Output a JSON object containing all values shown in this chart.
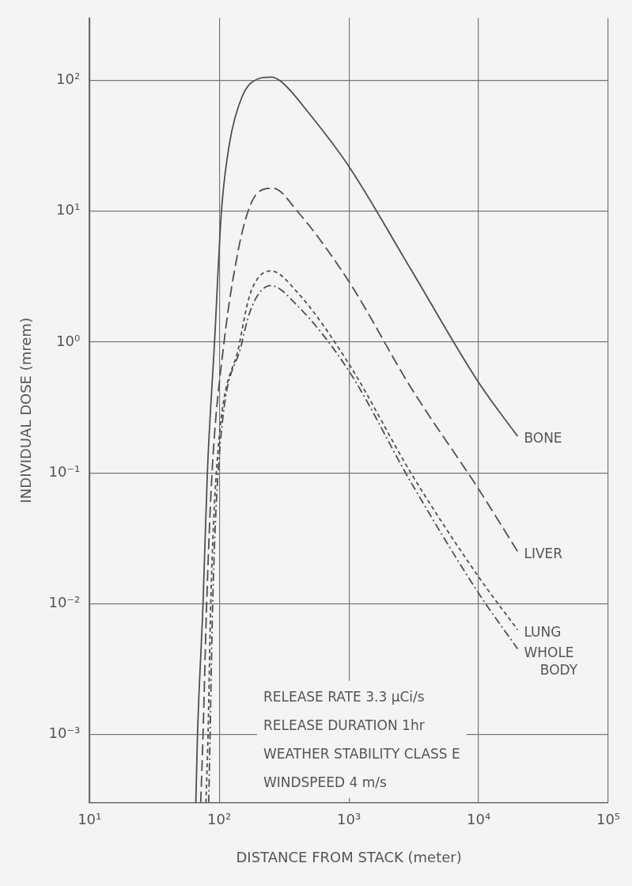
{
  "chart_data": {
    "type": "line",
    "xlabel": "DISTANCE FROM STACK (meter)",
    "ylabel": "INDIVIDUAL DOSE (mrem)",
    "log": "xy",
    "grid": true,
    "legend": false,
    "marker": "none",
    "xlim": [
      10,
      100000
    ],
    "ylim": [
      0.0003,
      300
    ],
    "xticks": [
      {
        "value": 10,
        "label": "10¹"
      },
      {
        "value": 100,
        "label": "10²"
      },
      {
        "value": 1000,
        "label": "10³"
      },
      {
        "value": 10000,
        "label": "10⁴"
      },
      {
        "value": 100000,
        "label": "10⁵"
      }
    ],
    "yticks": [
      {
        "value": 0.001,
        "label": "10⁻³"
      },
      {
        "value": 0.01,
        "label": "10⁻²"
      },
      {
        "value": 0.1,
        "label": "10⁻¹"
      },
      {
        "value": 1,
        "label": "10⁰"
      },
      {
        "value": 10,
        "label": "10¹"
      },
      {
        "value": 100,
        "label": "10²"
      }
    ],
    "series": [
      {
        "name": "BONE",
        "color": "#505050",
        "line_style": "solid",
        "x": [
          66,
          68,
          75,
          81,
          92,
          104,
          120,
          150,
          200,
          250,
          300,
          500,
          1000,
          3000,
          10000,
          20000
        ],
        "values": [
          0.0003,
          0.001,
          0.01,
          0.1,
          1,
          10,
          33,
          75,
          103,
          106,
          98,
          55,
          22,
          3.6,
          0.49,
          0.19
        ]
      },
      {
        "name": "LIVER",
        "color": "#505050",
        "line_style": "dashed",
        "x": [
          72,
          75,
          80,
          88,
          109,
          140,
          167,
          200,
          260,
          400,
          1000,
          3000,
          10000,
          20000
        ],
        "values": [
          0.0003,
          0.001,
          0.01,
          0.1,
          1,
          5,
          10,
          14,
          15,
          10,
          2.9,
          0.45,
          0.075,
          0.025
        ]
      },
      {
        "name": "LUNG",
        "color": "#505050",
        "line_style": "dotted",
        "x": [
          79,
          82,
          86,
          95,
          144,
          170,
          200,
          250,
          400,
          1000,
          3000,
          10000,
          20000
        ],
        "values": [
          0.0003,
          0.001,
          0.01,
          0.1,
          1,
          2.2,
          3.1,
          3.5,
          2.4,
          0.68,
          0.1,
          0.016,
          0.0063
        ]
      },
      {
        "name": "WHOLE BODY",
        "color": "#505050",
        "line_style": "dashdot",
        "x": [
          83,
          85,
          89,
          98,
          150,
          180,
          250,
          400,
          1000,
          3000,
          10000,
          20000
        ],
        "values": [
          0.0003,
          0.001,
          0.01,
          0.1,
          1,
          1.9,
          2.7,
          1.9,
          0.6,
          0.085,
          0.012,
          0.0045
        ]
      }
    ],
    "annotations": [
      "RELEASE RATE 3.3 μCi/s",
      "RELEASE DURATION 1hr",
      "WEATHER STABILITY CLASS E",
      "WINDSPEED 4 m/s"
    ]
  }
}
